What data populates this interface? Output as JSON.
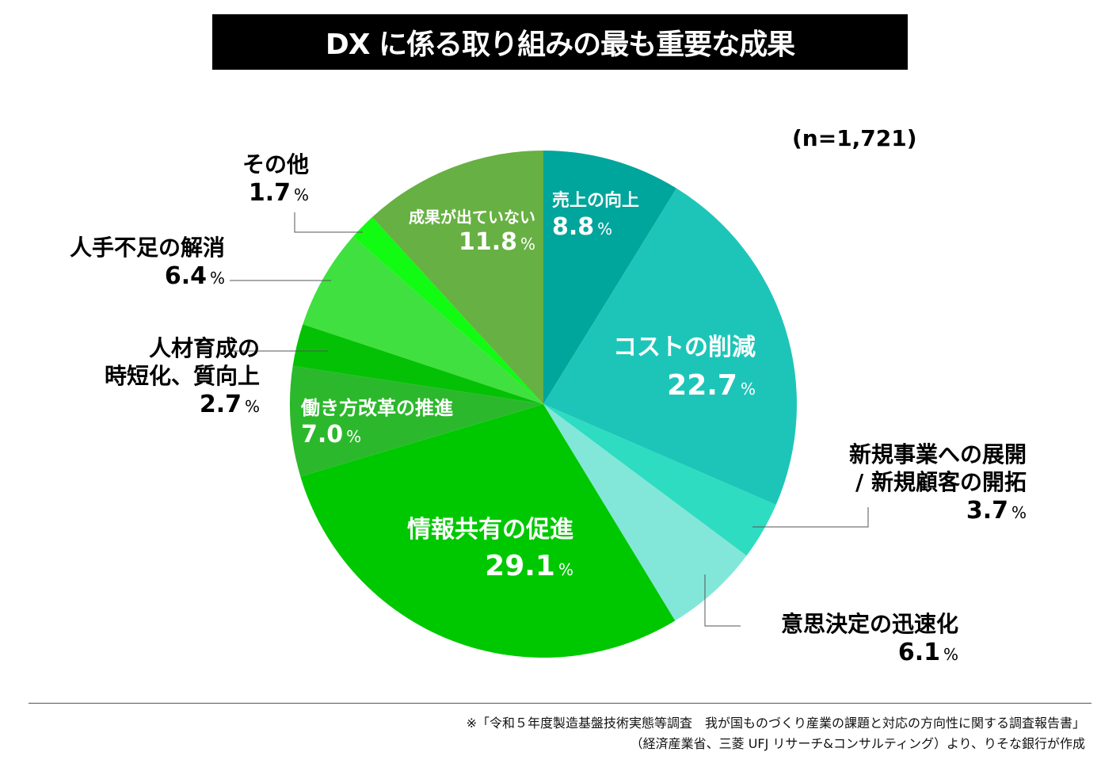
{
  "chart_data": {
    "type": "pie",
    "title": "DX に係る取り組みの最も重要な成果",
    "subtitle": "(n=1,721)",
    "unit": "%",
    "slices": [
      {
        "label": "売上の向上",
        "value": 8.8,
        "value_text": "8.8",
        "color": "#00a59b"
      },
      {
        "label": "コストの削減",
        "value": 22.7,
        "value_text": "22.7",
        "color": "#1dc5b8"
      },
      {
        "label": "新規事業への展開 / 新規顧客の開拓",
        "label_lines": [
          "新規事業への展開",
          "/ 新規顧客の開拓"
        ],
        "value": 3.7,
        "value_text": "3.7",
        "color": "#2edcc1"
      },
      {
        "label": "意思決定の迅速化",
        "value": 6.1,
        "value_text": "6.1",
        "color": "#82e7d9"
      },
      {
        "label": "情報共有の促進",
        "value": 29.1,
        "value_text": "29.1",
        "color": "#00c800"
      },
      {
        "label": "働き方改革の推進",
        "value": 7.0,
        "value_text": "7.0",
        "color": "#2cb82c"
      },
      {
        "label": "人材育成の時短化、質向上",
        "label_lines": [
          "人材育成の",
          "時短化、質向上"
        ],
        "value": 2.7,
        "value_text": "2.7",
        "color": "#05c105"
      },
      {
        "label": "人手不足の解消",
        "value": 6.4,
        "value_text": "6.4",
        "color": "#3fe03f"
      },
      {
        "label": "その他",
        "value": 1.7,
        "value_text": "1.7",
        "color": "#12fb12"
      },
      {
        "label": "成果が出ていない",
        "value": 11.8,
        "value_text": "11.8",
        "color": "#67b043"
      }
    ]
  },
  "footnote": {
    "line1": "※「令和５年度製造基盤技術実態等調査　我が国ものづくり産業の課題と対応の方向性に関する調査報告書」",
    "line2": "（経済産業省、三菱 UFJ リサーチ&コンサルティング）より、りそな銀行が作成"
  }
}
